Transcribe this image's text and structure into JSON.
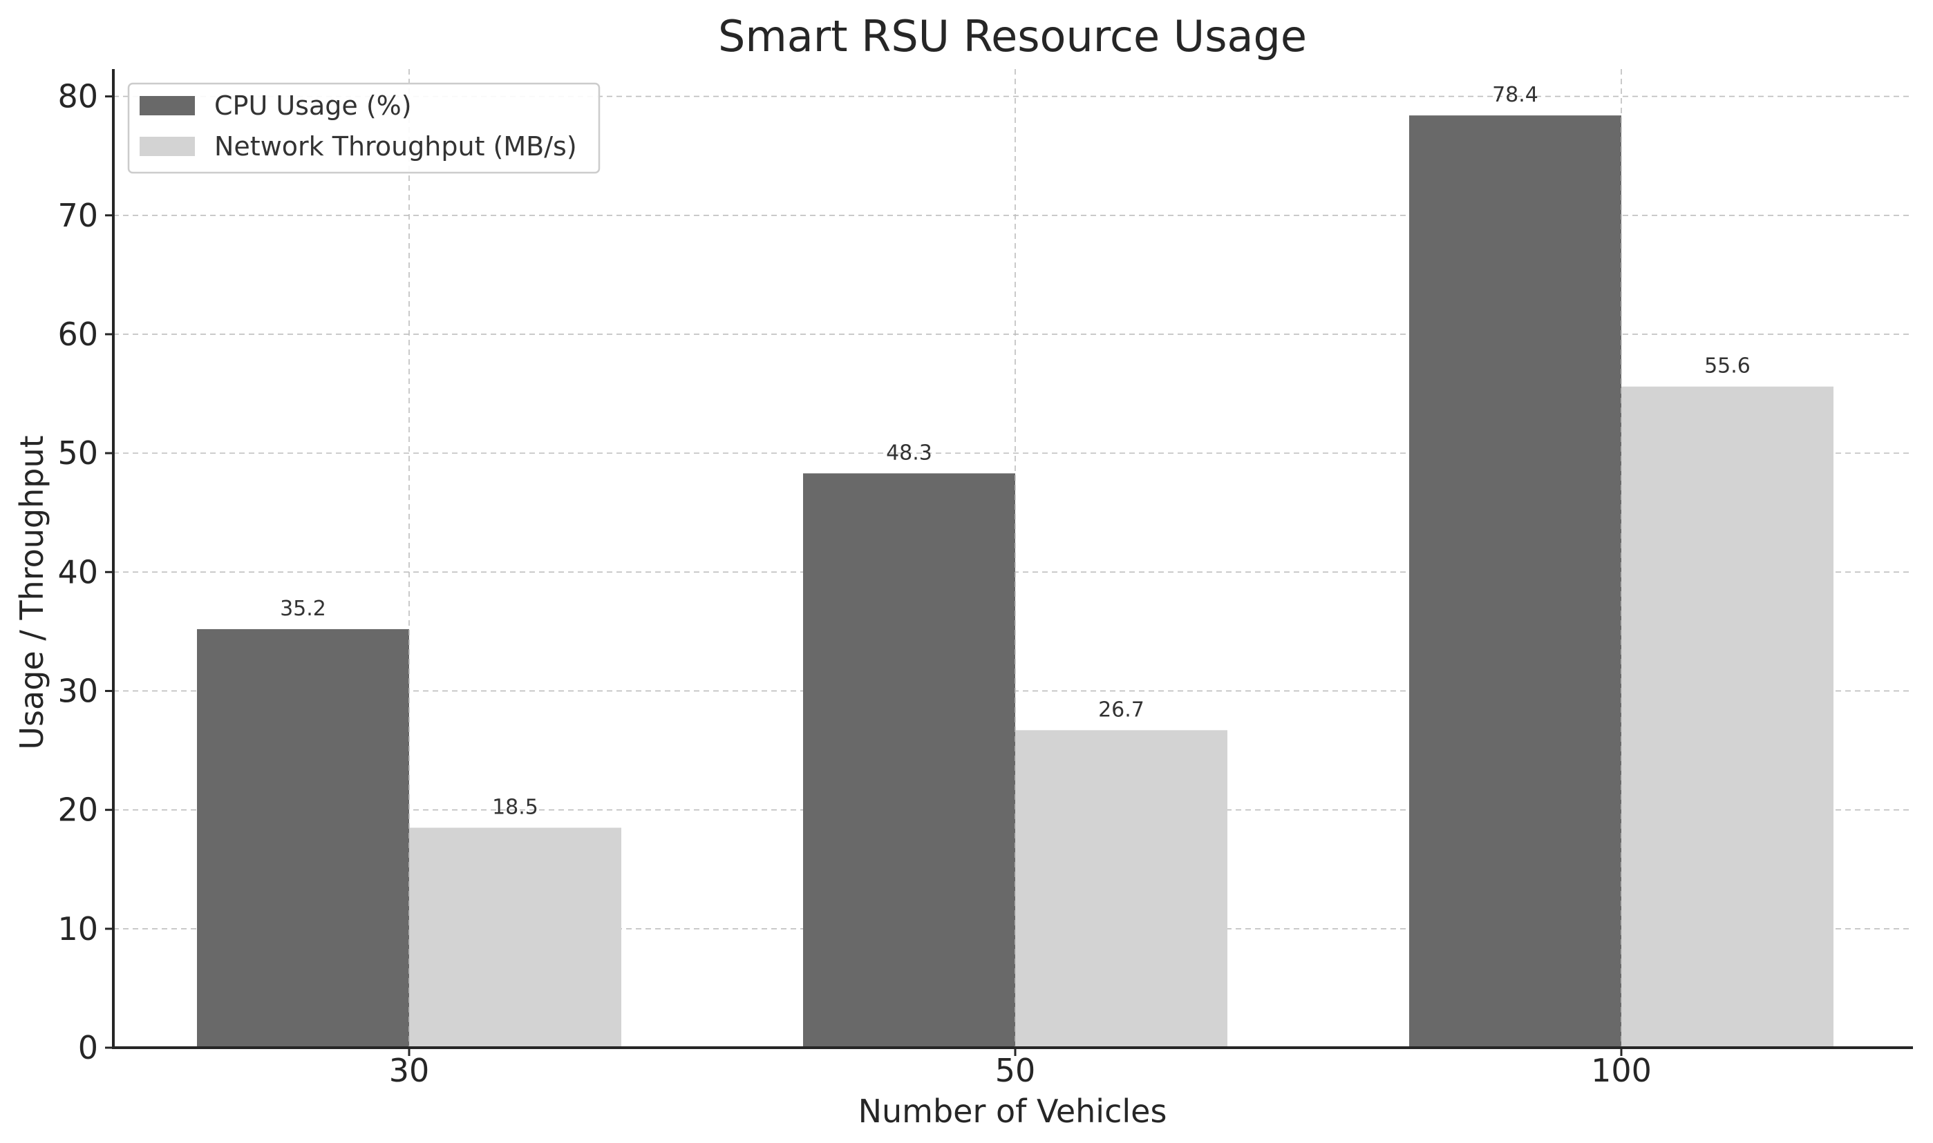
{
  "chart_data": {
    "type": "bar",
    "title": "Smart RSU Resource Usage",
    "xlabel": "Number of Vehicles",
    "ylabel": "Usage / Throughput",
    "categories": [
      "30",
      "50",
      "100"
    ],
    "series": [
      {
        "name": "CPU Usage (%)",
        "values": [
          35.2,
          48.3,
          78.4
        ],
        "color": "#696969"
      },
      {
        "name": "Network Throughput (MB/s)",
        "values": [
          18.5,
          26.7,
          55.6
        ],
        "color": "#d3d3d3"
      }
    ],
    "ylim": [
      0,
      82.3
    ],
    "yticks": [
      0,
      10,
      20,
      30,
      40,
      50,
      60,
      70,
      80
    ],
    "grid": true,
    "legend_position": "top-left"
  }
}
